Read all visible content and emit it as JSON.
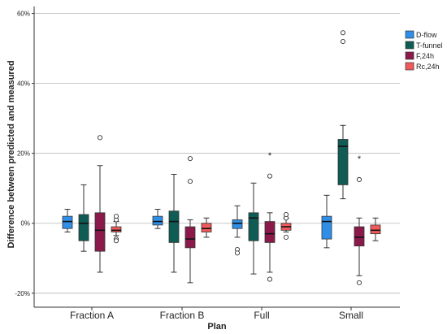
{
  "chart_data": {
    "type": "box",
    "xlabel": "Plan",
    "ylabel": "Difference between predicted and measured",
    "ylim": [
      -24,
      62
    ],
    "yticks": [
      -20,
      0,
      20,
      40,
      60
    ],
    "ytick_labels": [
      "-20%",
      "0%",
      "20%",
      "40%",
      "60%"
    ],
    "grid": true,
    "legend_position": "top-right",
    "categories": [
      "Fraction A",
      "Fraction B",
      "Full",
      "Small"
    ],
    "series": [
      {
        "name": "D-flow",
        "color": "#2f8fe8",
        "boxes": [
          {
            "whisker_low": -2.5,
            "q1": -1.5,
            "median": 0.5,
            "q3": 2,
            "whisker_high": 4,
            "outliers": [],
            "extremes": []
          },
          {
            "whisker_low": -1.5,
            "q1": -0.5,
            "median": 0.5,
            "q3": 2,
            "whisker_high": 4,
            "outliers": [],
            "extremes": []
          },
          {
            "whisker_low": -4,
            "q1": -1.5,
            "median": 0,
            "q3": 1,
            "whisker_high": 5,
            "outliers": [
              -7.5,
              -8.5
            ],
            "extremes": []
          },
          {
            "whisker_low": -7,
            "q1": -4.5,
            "median": 0.5,
            "q3": 2,
            "whisker_high": 8,
            "outliers": [],
            "extremes": []
          }
        ]
      },
      {
        "name": "T-funnel",
        "color": "#0f5c55",
        "boxes": [
          {
            "whisker_low": -8,
            "q1": -5,
            "median": 0,
            "q3": 2.5,
            "whisker_high": 11,
            "outliers": [],
            "extremes": []
          },
          {
            "whisker_low": -14,
            "q1": -5.5,
            "median": 0.5,
            "q3": 3.5,
            "whisker_high": 14,
            "outliers": [],
            "extremes": []
          },
          {
            "whisker_low": -14.5,
            "q1": -5,
            "median": 1.5,
            "q3": 3,
            "whisker_high": 11.5,
            "outliers": [],
            "extremes": []
          },
          {
            "whisker_low": 7,
            "q1": 11,
            "median": 22,
            "q3": 24,
            "whisker_high": 28,
            "outliers": [
              52,
              54.5
            ],
            "extremes": []
          }
        ]
      },
      {
        "name": "F,24h",
        "color": "#8b1a4a",
        "boxes": [
          {
            "whisker_low": -14,
            "q1": -8,
            "median": -2,
            "q3": 3,
            "whisker_high": 16.5,
            "outliers": [
              24.5
            ],
            "extremes": []
          },
          {
            "whisker_low": -17,
            "q1": -7,
            "median": -4.5,
            "q3": -1,
            "whisker_high": 1,
            "outliers": [
              12,
              18.5
            ],
            "extremes": []
          },
          {
            "whisker_low": -14,
            "q1": -5.5,
            "median": -3,
            "q3": 0.5,
            "whisker_high": 3,
            "outliers": [
              13.5,
              -16
            ],
            "extremes": [
              19.5
            ]
          },
          {
            "whisker_low": -15,
            "q1": -6.5,
            "median": -4,
            "q3": -1,
            "whisker_high": 1.5,
            "outliers": [
              12.5,
              -17
            ],
            "extremes": [
              18.5
            ]
          }
        ]
      },
      {
        "name": "Rc,24h",
        "color": "#f05a5a",
        "boxes": [
          {
            "whisker_low": -3.5,
            "q1": -2.5,
            "median": -2,
            "q3": -1,
            "whisker_high": 0.5,
            "outliers": [
              -4.5,
              -5,
              1,
              2
            ],
            "extremes": []
          },
          {
            "whisker_low": -4,
            "q1": -2.5,
            "median": -1.5,
            "q3": 0,
            "whisker_high": 1.5,
            "outliers": [],
            "extremes": []
          },
          {
            "whisker_low": -2.5,
            "q1": -2,
            "median": -1,
            "q3": 0,
            "whisker_high": 1.5,
            "outliers": [
              -4,
              1.5,
              2.5
            ],
            "extremes": []
          },
          {
            "whisker_low": -5,
            "q1": -3,
            "median": -2,
            "q3": -0.5,
            "whisker_high": 1.5,
            "outliers": [],
            "extremes": []
          }
        ]
      }
    ]
  }
}
